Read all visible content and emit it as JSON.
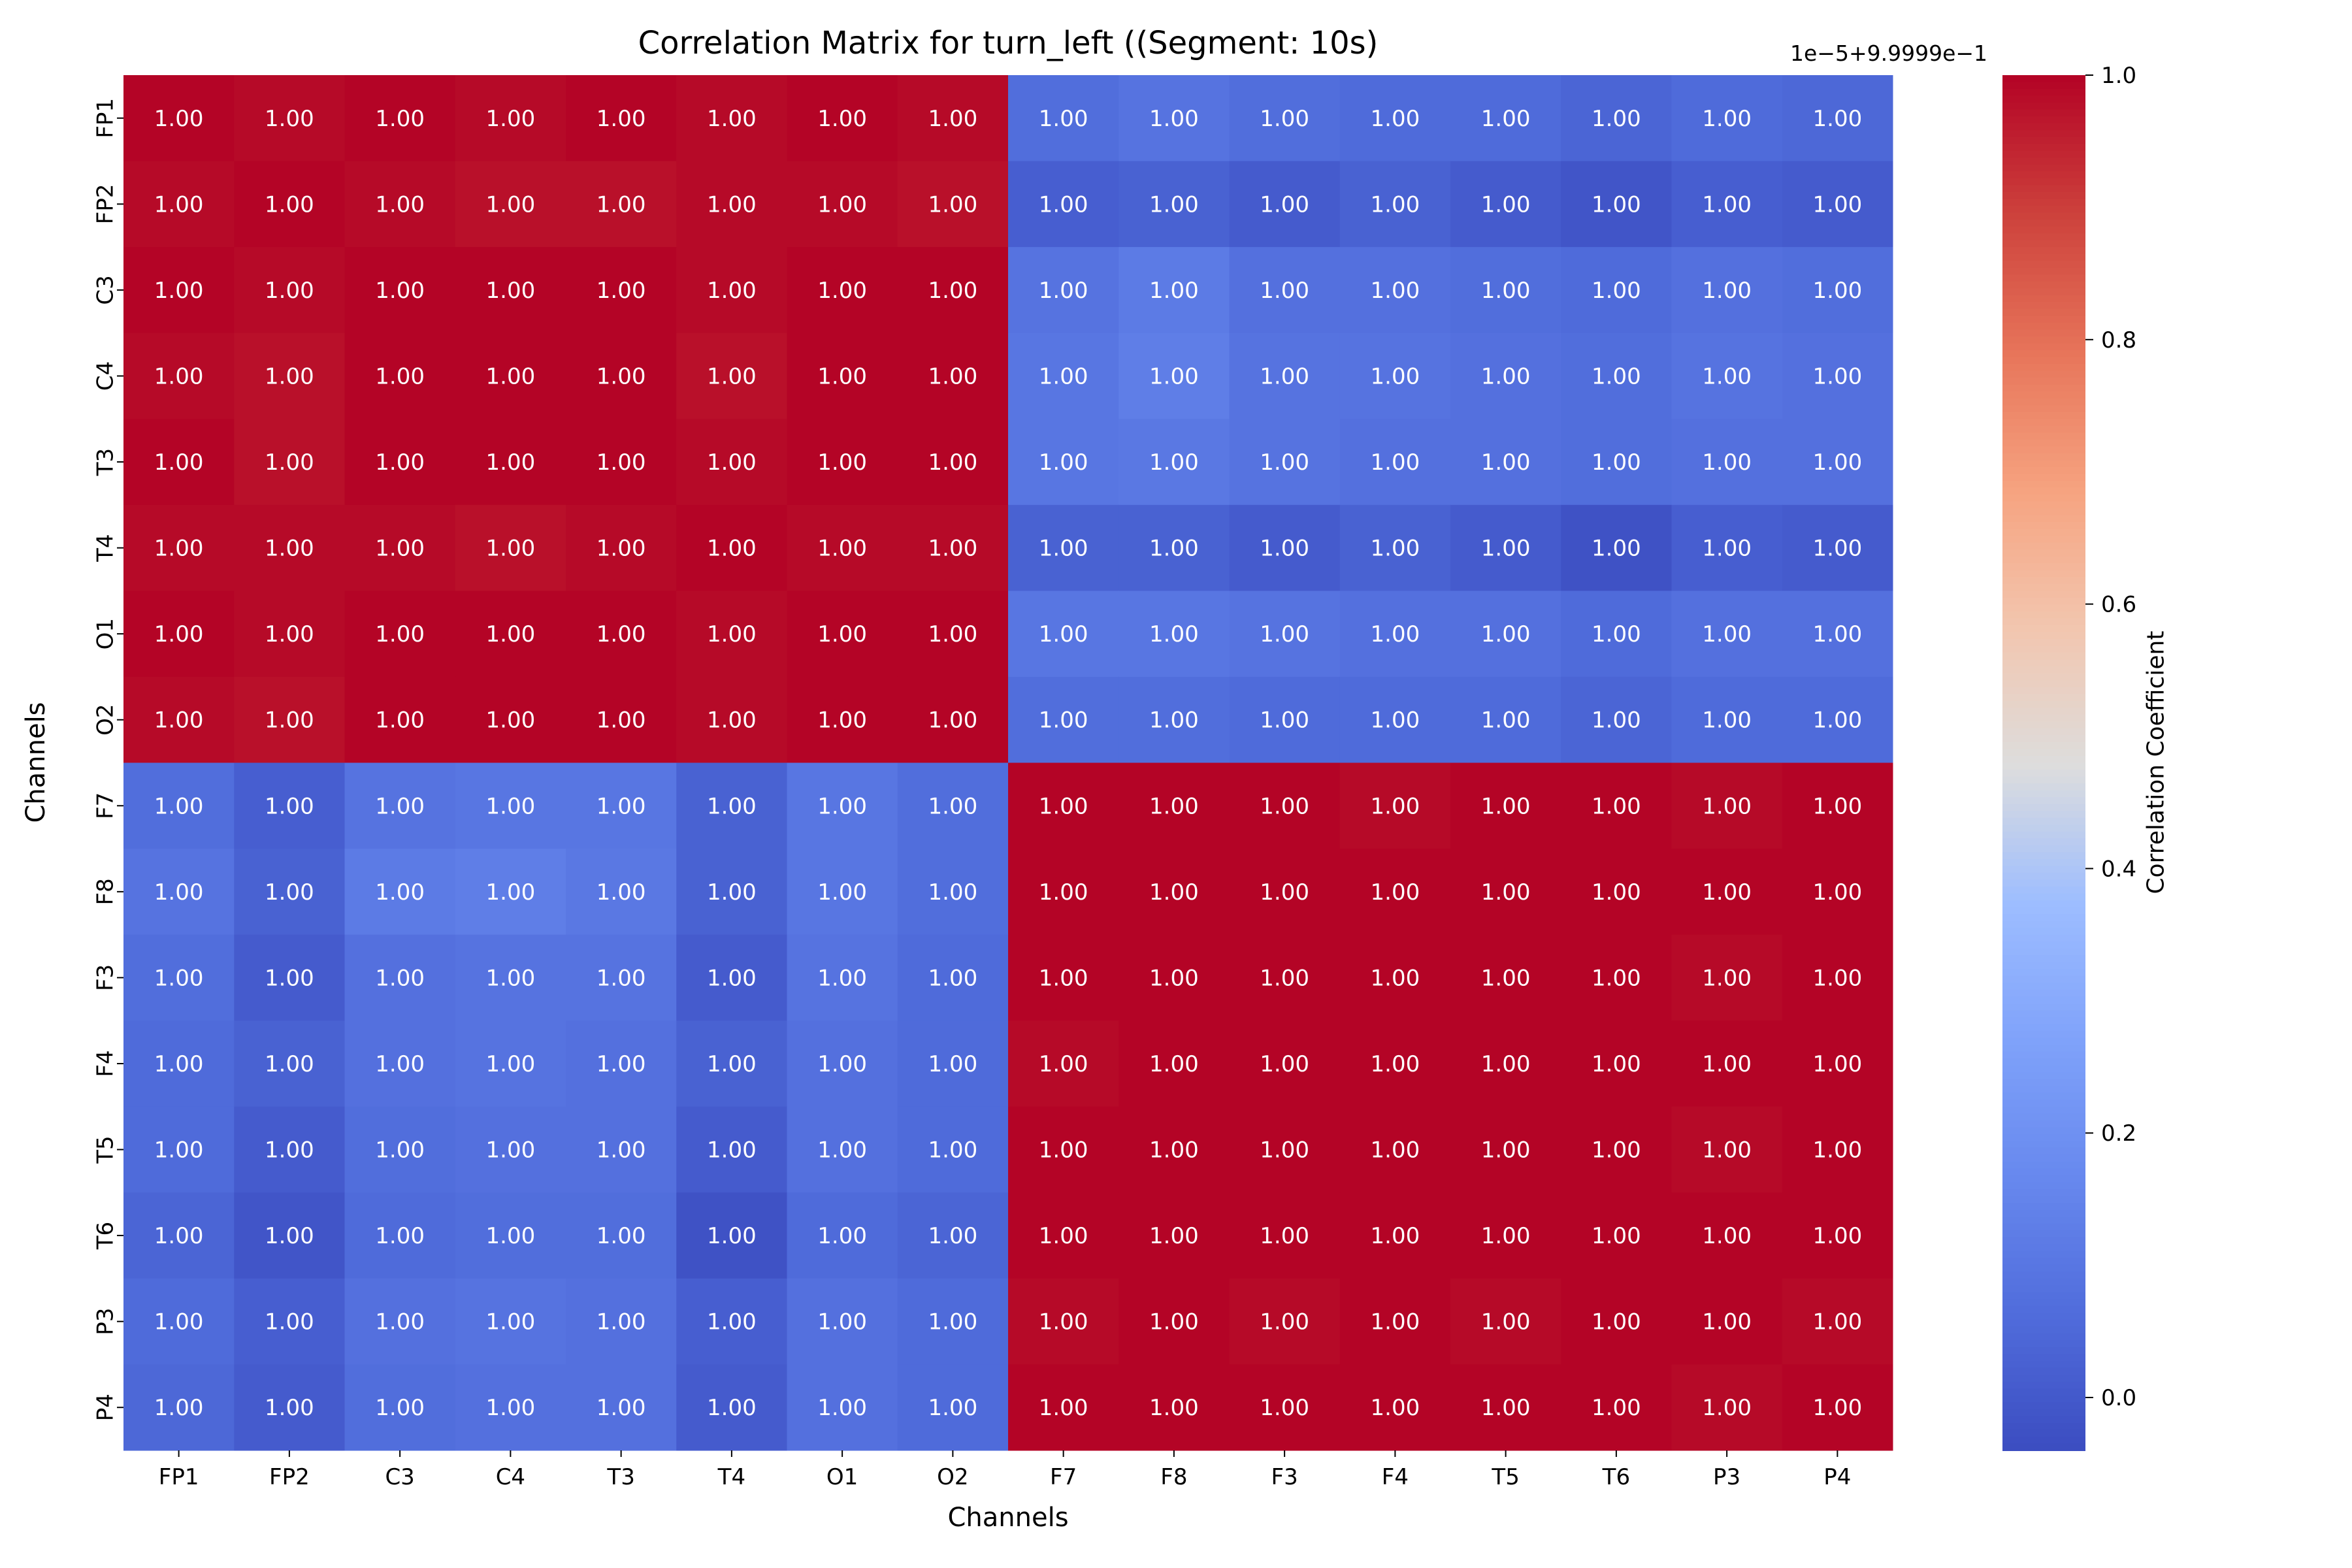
{
  "chart_data": {
    "type": "heatmap",
    "title": "Correlation Matrix for turn_left ((Segment: 10s)",
    "xlabel": "Channels",
    "ylabel": "Channels",
    "x_categories": [
      "FP1",
      "FP2",
      "C3",
      "C4",
      "T3",
      "T4",
      "O1",
      "O2",
      "F7",
      "F8",
      "F3",
      "F4",
      "T5",
      "T6",
      "P3",
      "P4"
    ],
    "y_categories": [
      "FP1",
      "FP2",
      "C3",
      "C4",
      "T3",
      "T4",
      "O1",
      "O2",
      "F7",
      "F8",
      "F3",
      "F4",
      "T5",
      "T6",
      "P3",
      "P4"
    ],
    "colormap": "coolwarm",
    "colorbar": {
      "label": "Correlation Coefficient",
      "offset_text": "1e−5+9.9999e−1",
      "ticks": [
        "0.0",
        "0.2",
        "0.4",
        "0.6",
        "0.8",
        "1.0"
      ],
      "range": [
        -0.04,
        1.0
      ]
    },
    "note_values_in_offset_units": true,
    "values": [
      [
        1.0,
        0.99,
        1.0,
        0.99,
        1.0,
        0.99,
        1.0,
        0.99,
        0.07,
        0.09,
        0.07,
        0.06,
        0.06,
        0.04,
        0.06,
        0.05
      ],
      [
        0.99,
        1.0,
        0.99,
        0.98,
        0.98,
        0.99,
        0.99,
        0.98,
        0.02,
        0.03,
        0.01,
        0.03,
        0.01,
        -0.01,
        0.02,
        0.01
      ],
      [
        1.0,
        0.99,
        1.0,
        1.0,
        1.0,
        0.99,
        1.0,
        1.0,
        0.09,
        0.12,
        0.08,
        0.08,
        0.07,
        0.06,
        0.08,
        0.07
      ],
      [
        0.99,
        0.98,
        1.0,
        1.0,
        1.0,
        0.98,
        1.0,
        1.0,
        0.1,
        0.13,
        0.09,
        0.09,
        0.08,
        0.07,
        0.09,
        0.08
      ],
      [
        1.0,
        0.98,
        1.0,
        1.0,
        1.0,
        0.99,
        1.0,
        1.0,
        0.1,
        0.11,
        0.09,
        0.08,
        0.08,
        0.07,
        0.08,
        0.08
      ],
      [
        0.99,
        0.99,
        0.99,
        0.98,
        0.99,
        1.0,
        0.99,
        0.99,
        0.03,
        0.03,
        0.01,
        0.03,
        0.01,
        -0.02,
        0.02,
        0.01
      ],
      [
        1.0,
        0.99,
        1.0,
        1.0,
        1.0,
        0.99,
        1.0,
        1.0,
        0.1,
        0.1,
        0.09,
        0.08,
        0.08,
        0.06,
        0.08,
        0.08
      ],
      [
        0.99,
        0.98,
        1.0,
        1.0,
        1.0,
        0.99,
        1.0,
        1.0,
        0.07,
        0.07,
        0.06,
        0.06,
        0.06,
        0.04,
        0.06,
        0.06
      ],
      [
        0.07,
        0.02,
        0.09,
        0.1,
        0.1,
        0.03,
        0.1,
        0.07,
        1.0,
        1.0,
        1.0,
        0.99,
        1.0,
        1.0,
        0.99,
        1.0
      ],
      [
        0.09,
        0.03,
        0.12,
        0.13,
        0.11,
        0.03,
        0.1,
        0.07,
        1.0,
        1.0,
        1.0,
        1.0,
        1.0,
        1.0,
        1.0,
        1.0
      ],
      [
        0.07,
        0.01,
        0.08,
        0.09,
        0.09,
        0.01,
        0.09,
        0.06,
        1.0,
        1.0,
        1.0,
        1.0,
        1.0,
        1.0,
        0.99,
        1.0
      ],
      [
        0.06,
        0.03,
        0.08,
        0.09,
        0.08,
        0.03,
        0.08,
        0.06,
        0.99,
        1.0,
        1.0,
        1.0,
        1.0,
        1.0,
        1.0,
        1.0
      ],
      [
        0.06,
        0.01,
        0.07,
        0.08,
        0.08,
        0.01,
        0.08,
        0.06,
        1.0,
        1.0,
        1.0,
        1.0,
        1.0,
        1.0,
        0.99,
        1.0
      ],
      [
        0.04,
        -0.01,
        0.06,
        0.07,
        0.07,
        -0.02,
        0.06,
        0.04,
        1.0,
        1.0,
        1.0,
        1.0,
        1.0,
        1.0,
        1.0,
        1.0
      ],
      [
        0.06,
        0.02,
        0.08,
        0.09,
        0.08,
        0.02,
        0.08,
        0.06,
        0.99,
        1.0,
        0.99,
        1.0,
        0.99,
        1.0,
        1.0,
        0.99
      ],
      [
        0.05,
        0.01,
        0.07,
        0.08,
        0.08,
        0.01,
        0.08,
        0.06,
        1.0,
        1.0,
        1.0,
        1.0,
        1.0,
        1.0,
        0.99,
        1.0
      ]
    ],
    "annotation_text": "1.00"
  }
}
